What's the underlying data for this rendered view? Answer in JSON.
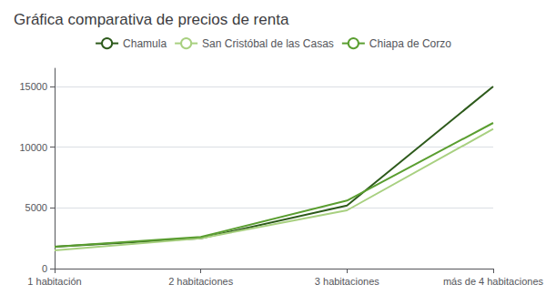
{
  "chart_data": {
    "type": "line",
    "title": "Gráfica comparativa de precios de renta",
    "categories": [
      "1 habitación",
      "2 habitaciones",
      "3 habitaciones",
      "más de 4 habitaciones"
    ],
    "series": [
      {
        "name": "Chamula",
        "color": "#2d5a1b",
        "values": [
          1800,
          2500,
          5200,
          15000
        ]
      },
      {
        "name": "San Cristóbal de las Casas",
        "color": "#a8d080",
        "values": [
          1500,
          2500,
          4800,
          11500
        ]
      },
      {
        "name": "Chiapa de Corzo",
        "color": "#5a9e30",
        "values": [
          1800,
          2600,
          5600,
          12000
        ]
      }
    ],
    "ylim": [
      0,
      16500
    ],
    "yticks": [
      0,
      5000,
      10000,
      15000
    ],
    "grid": true,
    "legend": "top"
  }
}
